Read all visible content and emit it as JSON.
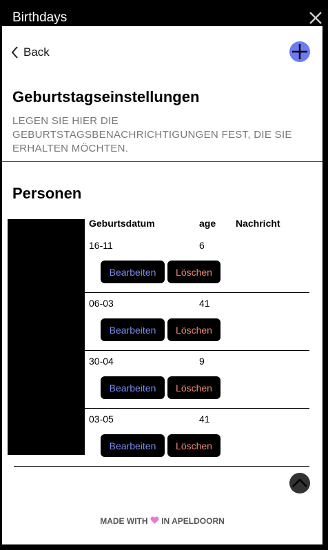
{
  "window": {
    "title": "Birthdays"
  },
  "nav": {
    "back": "Back"
  },
  "header": {
    "title": "Geburtstagseinstellungen",
    "subtitle": "LEGEN SIE HIER DIE GEBURTSTAGSBENACHRICHTIGUNGEN FEST, DIE SIE ERHALTEN MÖCHTEN."
  },
  "section": {
    "title": "Personen"
  },
  "table": {
    "columns": [
      "Geburtsdatum",
      "age",
      "Nachricht"
    ],
    "rows": [
      [
        "16-11",
        6
      ],
      [
        "06-03",
        41
      ],
      [
        "30-04",
        9
      ],
      [
        "03-05",
        41
      ]
    ],
    "edit_label": "Bearbeiten",
    "delete_label": "Löschen"
  },
  "footer": {
    "before": "MADE WITH",
    "after": "IN APELDOORN"
  }
}
